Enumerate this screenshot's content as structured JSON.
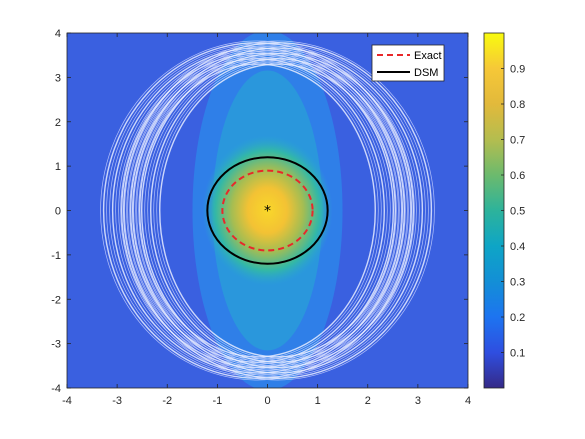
{
  "chart_data": {
    "type": "heatmap",
    "title": "",
    "xlabel": "",
    "ylabel": "",
    "xlim": [
      -4,
      4
    ],
    "ylim": [
      -4,
      4
    ],
    "x_ticks": [
      "-4",
      "-3",
      "-2",
      "-1",
      "0",
      "1",
      "2",
      "3",
      "4"
    ],
    "y_ticks": [
      "4",
      "3",
      "2",
      "1",
      "0",
      "-1",
      "-2",
      "-3",
      "-4"
    ],
    "colorbar": {
      "colormap": "parula",
      "range": [
        0,
        1
      ],
      "ticks": [
        "0.9",
        "0.8",
        "0.7",
        "0.6",
        "0.5",
        "0.4",
        "0.3",
        "0.2",
        "0.1"
      ]
    },
    "field_peak": {
      "x": 0,
      "y": 0,
      "value": 1.0
    },
    "series": [
      {
        "name": "Exact",
        "shape": "circle",
        "center": [
          0,
          0
        ],
        "radius": 0.9,
        "color": "#e8282a",
        "style": "dashed"
      },
      {
        "name": "DSM",
        "shape": "ellipse",
        "center": [
          0,
          0
        ],
        "radii": [
          1.2,
          1.2
        ],
        "color": "#000000",
        "style": "solid"
      }
    ],
    "marker": {
      "x": 0,
      "y": 0,
      "symbol": "*"
    },
    "legend": {
      "placement": "top-right",
      "entries": [
        "Exact",
        "DSM"
      ]
    },
    "grid": false
  }
}
